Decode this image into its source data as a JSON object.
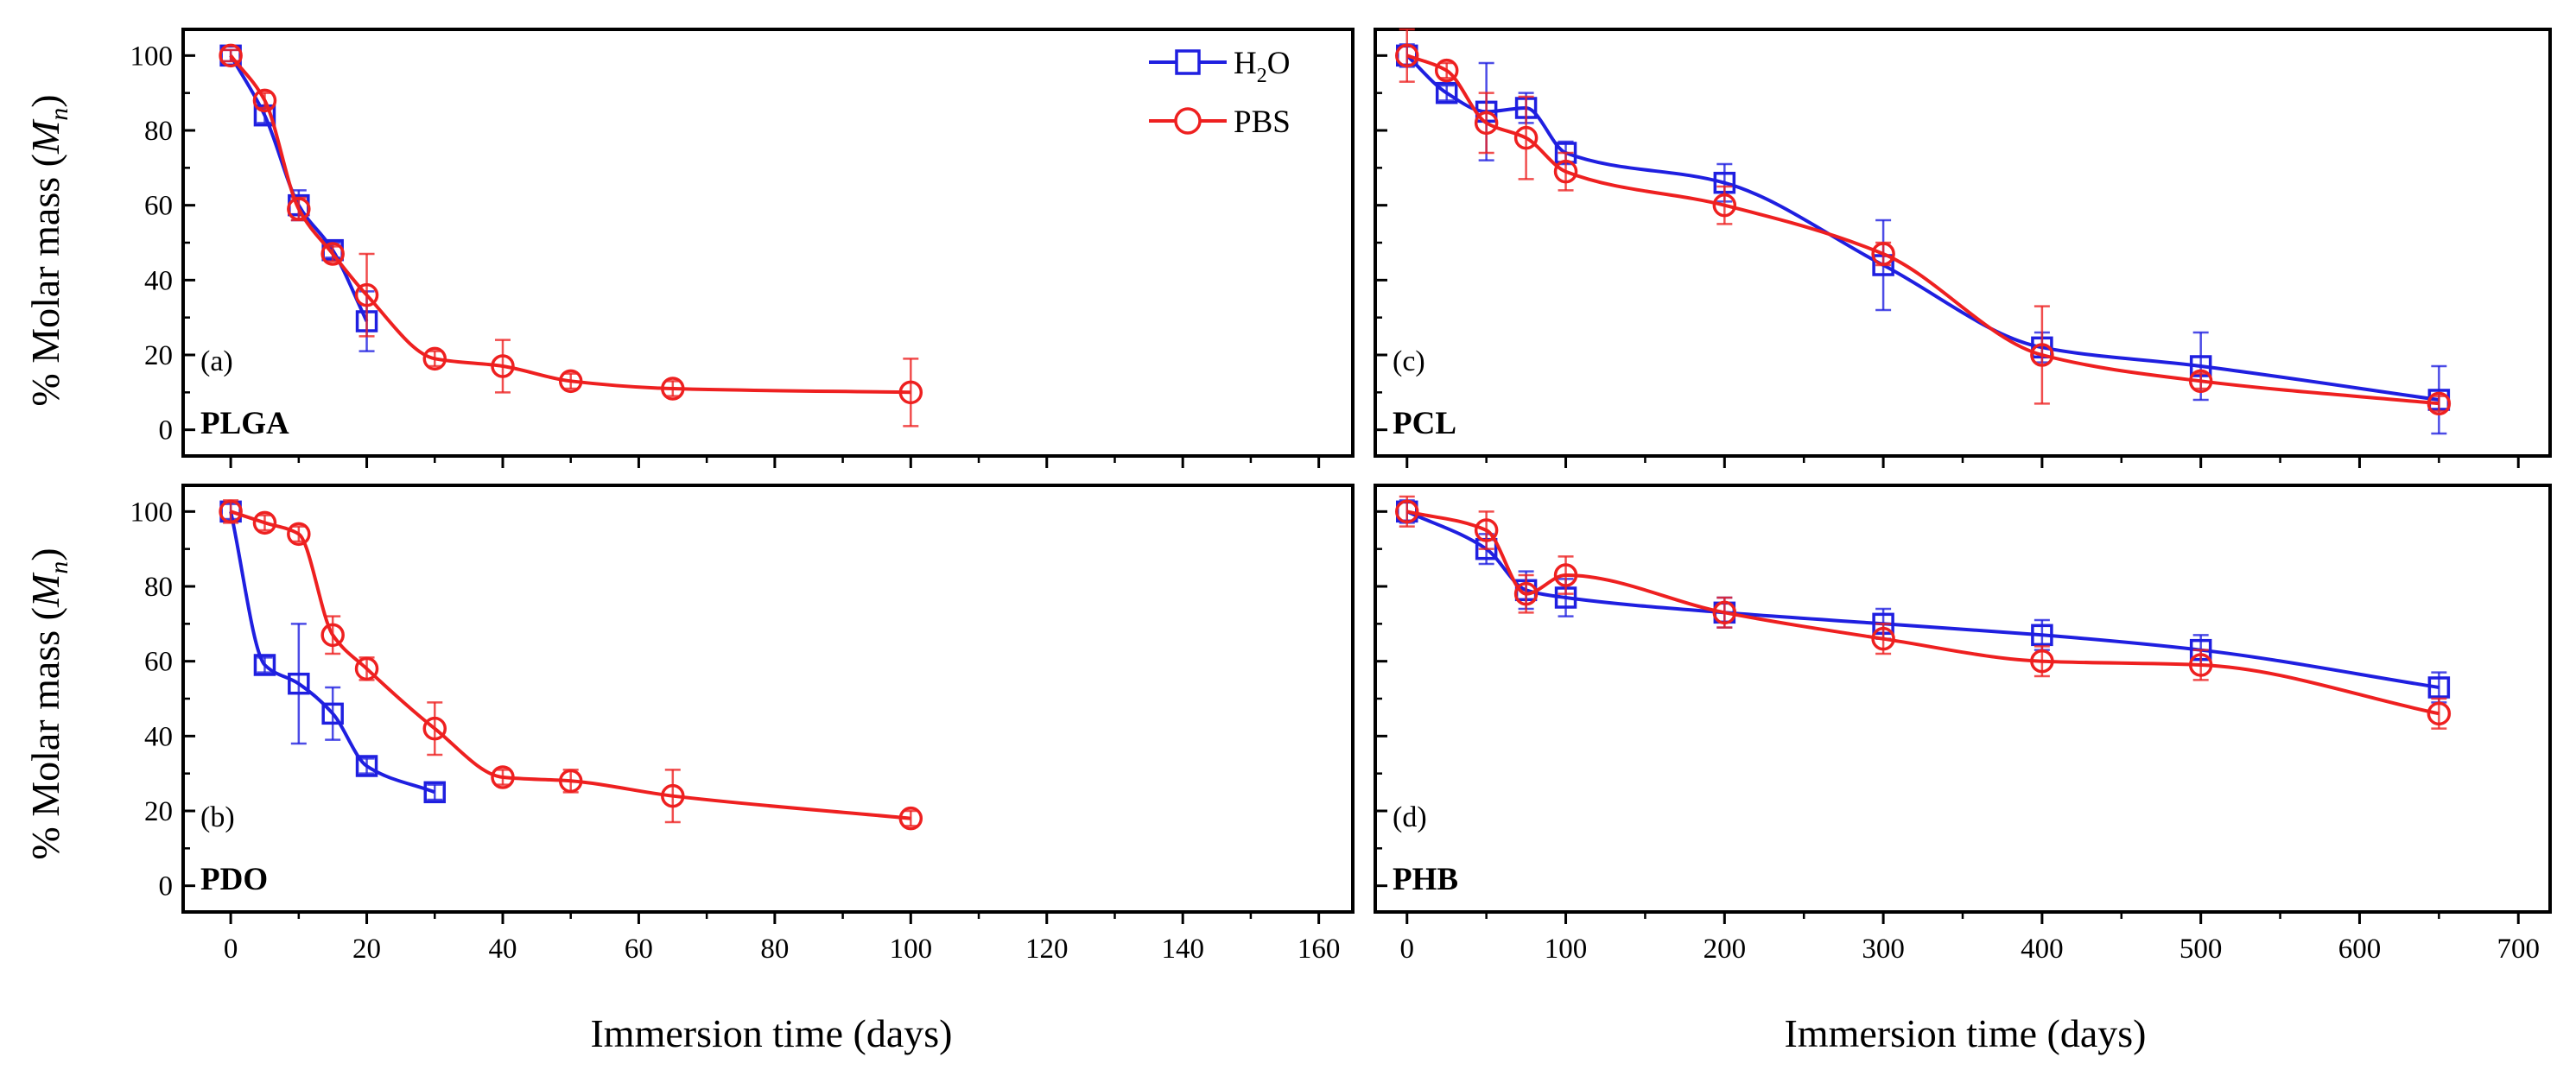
{
  "chart_data": {
    "type": "line",
    "y_axis_label": "% Molar mass (M_n)",
    "y_axis_label_parts": {
      "prefix": "% Molar mass (",
      "symbol": "M",
      "subscript": "n",
      "suffix": ")"
    },
    "x_axis_label": "Immersion time (days)",
    "legend": [
      {
        "name": "H2O",
        "display": {
          "base": "H",
          "sub": "2",
          "rest": "O"
        },
        "color": "#1f1fe0",
        "marker": "square"
      },
      {
        "name": "PBS",
        "display": {
          "base": "PBS",
          "sub": "",
          "rest": ""
        },
        "color": "#ee2020",
        "marker": "circle"
      }
    ],
    "panels": [
      {
        "id": "a",
        "letter": "(a)",
        "polymer": "PLGA",
        "xlim": [
          -7,
          165
        ],
        "ylim": [
          -7,
          107
        ],
        "xticks": [
          0,
          20,
          40,
          60,
          80,
          100,
          120,
          140,
          160
        ],
        "yticks": [
          0,
          20,
          40,
          60,
          80,
          100
        ],
        "show_xtick_labels": false,
        "show_ytick_labels": true,
        "series": [
          {
            "name": "H2O",
            "color": "#1f1fe0",
            "marker": "square",
            "x": [
              0,
              5,
              10,
              15,
              20
            ],
            "y": [
              100,
              84,
              60,
              48,
              29
            ],
            "err": [
              1.5,
              2,
              4,
              2,
              8
            ]
          },
          {
            "name": "PBS",
            "color": "#ee2020",
            "marker": "circle",
            "x": [
              0,
              5,
              10,
              15,
              20,
              30,
              40,
              50,
              65,
              100
            ],
            "y": [
              100,
              88,
              59,
              47,
              36,
              19,
              17,
              13,
              11,
              10
            ],
            "err": [
              1.5,
              2,
              3,
              2,
              11,
              2,
              7,
              2,
              2,
              9
            ]
          }
        ]
      },
      {
        "id": "b",
        "letter": "(b)",
        "polymer": "PDO",
        "xlim": [
          -7,
          165
        ],
        "ylim": [
          -7,
          107
        ],
        "xticks": [
          0,
          20,
          40,
          60,
          80,
          100,
          120,
          140,
          160
        ],
        "yticks": [
          0,
          20,
          40,
          60,
          80,
          100
        ],
        "show_xtick_labels": true,
        "show_ytick_labels": true,
        "series": [
          {
            "name": "H2O",
            "color": "#1f1fe0",
            "marker": "square",
            "x": [
              0,
              5,
              10,
              15,
              20,
              30
            ],
            "y": [
              100,
              59,
              54,
              46,
              32,
              25
            ],
            "err": [
              2,
              2,
              16,
              7,
              2,
              2
            ]
          },
          {
            "name": "PBS",
            "color": "#ee2020",
            "marker": "circle",
            "x": [
              0,
              5,
              10,
              15,
              20,
              30,
              40,
              50,
              65,
              100
            ],
            "y": [
              100,
              97,
              94,
              67,
              58,
              42,
              29,
              28,
              24,
              18
            ],
            "err": [
              3,
              2,
              2,
              5,
              3,
              7,
              2,
              3,
              7,
              2
            ]
          }
        ]
      },
      {
        "id": "c",
        "letter": "(c)",
        "polymer": "PCL",
        "xlim": [
          -20,
          720
        ],
        "ylim": [
          -7,
          107
        ],
        "xticks": [
          0,
          100,
          200,
          300,
          400,
          500,
          600,
          700
        ],
        "yticks": [
          0,
          20,
          40,
          60,
          80,
          100
        ],
        "show_xtick_labels": false,
        "show_ytick_labels": false,
        "series": [
          {
            "name": "H2O",
            "color": "#1f1fe0",
            "marker": "square",
            "x": [
              0,
              25,
              50,
              75,
              100,
              200,
              300,
              400,
              500,
              650
            ],
            "y": [
              100,
              90,
              85,
              86,
              74,
              66,
              44,
              22,
              17,
              8
            ],
            "err": [
              3,
              2,
              13,
              4,
              3,
              5,
              12,
              4,
              9,
              9
            ]
          },
          {
            "name": "PBS",
            "color": "#ee2020",
            "marker": "circle",
            "x": [
              0,
              25,
              50,
              75,
              100,
              200,
              300,
              400,
              500,
              650
            ],
            "y": [
              100,
              96,
              82,
              78,
              69,
              60,
              47,
              20,
              13,
              7
            ],
            "err": [
              7,
              2,
              8,
              11,
              5,
              5,
              3,
              13,
              2,
              2
            ]
          }
        ]
      },
      {
        "id": "d",
        "letter": "(d)",
        "polymer": "PHB",
        "xlim": [
          -20,
          720
        ],
        "ylim": [
          -7,
          107
        ],
        "xticks": [
          0,
          100,
          200,
          300,
          400,
          500,
          600,
          700
        ],
        "yticks": [
          0,
          20,
          40,
          60,
          80,
          100
        ],
        "show_xtick_labels": true,
        "show_ytick_labels": false,
        "series": [
          {
            "name": "H2O",
            "color": "#1f1fe0",
            "marker": "square",
            "x": [
              0,
              50,
              75,
              100,
              200,
              300,
              400,
              500,
              650
            ],
            "y": [
              100,
              90,
              79,
              77,
              73,
              70,
              67,
              63,
              53
            ],
            "err": [
              3,
              4,
              5,
              5,
              4,
              4,
              4,
              4,
              4
            ]
          },
          {
            "name": "PBS",
            "color": "#ee2020",
            "marker": "circle",
            "x": [
              0,
              50,
              75,
              100,
              200,
              300,
              400,
              500,
              650
            ],
            "y": [
              100,
              95,
              78,
              83,
              73,
              66,
              60,
              59,
              46
            ],
            "err": [
              4,
              5,
              5,
              5,
              4,
              4,
              4,
              4,
              4
            ]
          }
        ]
      }
    ]
  }
}
